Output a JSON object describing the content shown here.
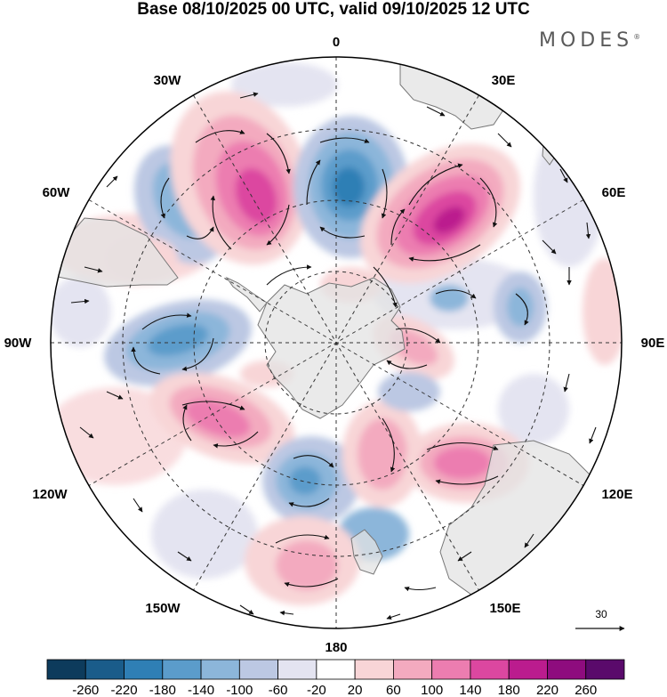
{
  "title": "Base 08/10/2025 00 UTC, valid 09/10/2025 12 UTC",
  "brand": "MODES",
  "brand_mark": "®",
  "longitude_labels": {
    "lon_0": "0",
    "lon_30e": "30E",
    "lon_60e": "60E",
    "lon_90e": "90E",
    "lon_120e": "120E",
    "lon_150e": "150E",
    "lon_180": "180",
    "lon_150w": "150W",
    "lon_120w": "120W",
    "lon_90w": "90W",
    "lon_60w": "60W",
    "lon_30w": "30W"
  },
  "reference_vector": "30",
  "colorbar": {
    "ticks": [
      "-260",
      "-220",
      "-180",
      "-140",
      "-100",
      "-60",
      "-20",
      "20",
      "60",
      "100",
      "140",
      "180",
      "220",
      "260"
    ],
    "colors": [
      "#0d3b5c",
      "#1a5c8a",
      "#2f7fb5",
      "#5b9ccb",
      "#8cb6da",
      "#bcc8e3",
      "#e4e4f1",
      "#ffffff",
      "#f8d5d7",
      "#f3aabf",
      "#ec7db0",
      "#dc47a0",
      "#bb1c8e",
      "#8e0c7e",
      "#5a0a6b"
    ]
  },
  "colors": {
    "land": "#e3e3e3",
    "coast": "#777777",
    "grid": "#333333"
  }
}
